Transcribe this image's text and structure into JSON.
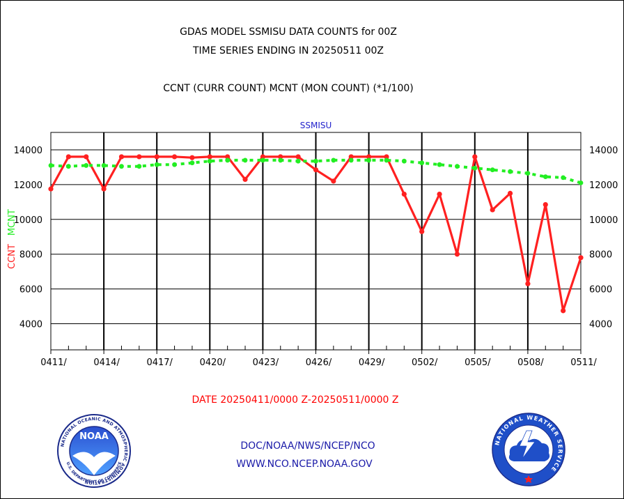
{
  "header": {
    "line1": "GDAS MODEL SSMISU DATA COUNTS for 00Z",
    "line2": "TIME SERIES ENDING IN 20250511 00Z",
    "line3": "CCNT (CURR COUNT) MCNT (MON COUNT) (*1/100)"
  },
  "footer": {
    "date_range": "DATE 20250411/0000 Z-20250511/0000 Z",
    "credit_line1": "DOC/NOAA/NWS/NCEP/NCO",
    "credit_line2": "WWW.NCO.NCEP.NOAA.GOV"
  },
  "logos": {
    "noaa": {
      "icon": "noaa-seal-icon",
      "center_text": "NOAA",
      "ring_text": "NATIONAL OCEANIC AND ATMOSPHERIC ADMINISTRATION",
      "bottom_text": "U.S. DEPARTMENT OF COMMERCE"
    },
    "nws": {
      "icon": "nws-seal-icon",
      "ring_text": "NATIONAL WEATHER SERVICE"
    }
  },
  "chart_data": {
    "type": "line",
    "title": "SSMISU",
    "ylabel_ccnt": "CCNT",
    "ylabel_mcnt": "MCNT",
    "ylim": [
      2500,
      15000
    ],
    "yticks": [
      4000,
      6000,
      8000,
      10000,
      12000,
      14000
    ],
    "x_start": "2025-04-11",
    "x_end": "2025-05-11",
    "xticks": [
      "0411/",
      "0414/",
      "0417/",
      "0420/",
      "0423/",
      "0426/",
      "0429/",
      "0502/",
      "0505/",
      "0508/",
      "0511/"
    ],
    "grid": true,
    "colors": {
      "ccnt": "#ff2020",
      "mcnt": "#22ee22",
      "title": "#2222cc"
    },
    "series": [
      {
        "name": "CCNT",
        "values": [
          11750,
          13600,
          13600,
          11750,
          13600,
          13600,
          13600,
          13600,
          13550,
          13600,
          13600,
          12300,
          13600,
          13600,
          13600,
          12850,
          12200,
          13600,
          13600,
          13600,
          11450,
          9300,
          11450,
          8000,
          13600,
          10550,
          11500,
          6300,
          10850,
          4750,
          7800
        ]
      },
      {
        "name": "MCNT",
        "values": [
          13100,
          13050,
          13100,
          13100,
          13050,
          13050,
          13150,
          13150,
          13250,
          13350,
          13400,
          13400,
          13400,
          13400,
          13350,
          13350,
          13400,
          13400,
          13400,
          13400,
          13350,
          13250,
          13150,
          13050,
          12950,
          12850,
          12750,
          12650,
          12450,
          12400,
          12100
        ]
      }
    ]
  }
}
